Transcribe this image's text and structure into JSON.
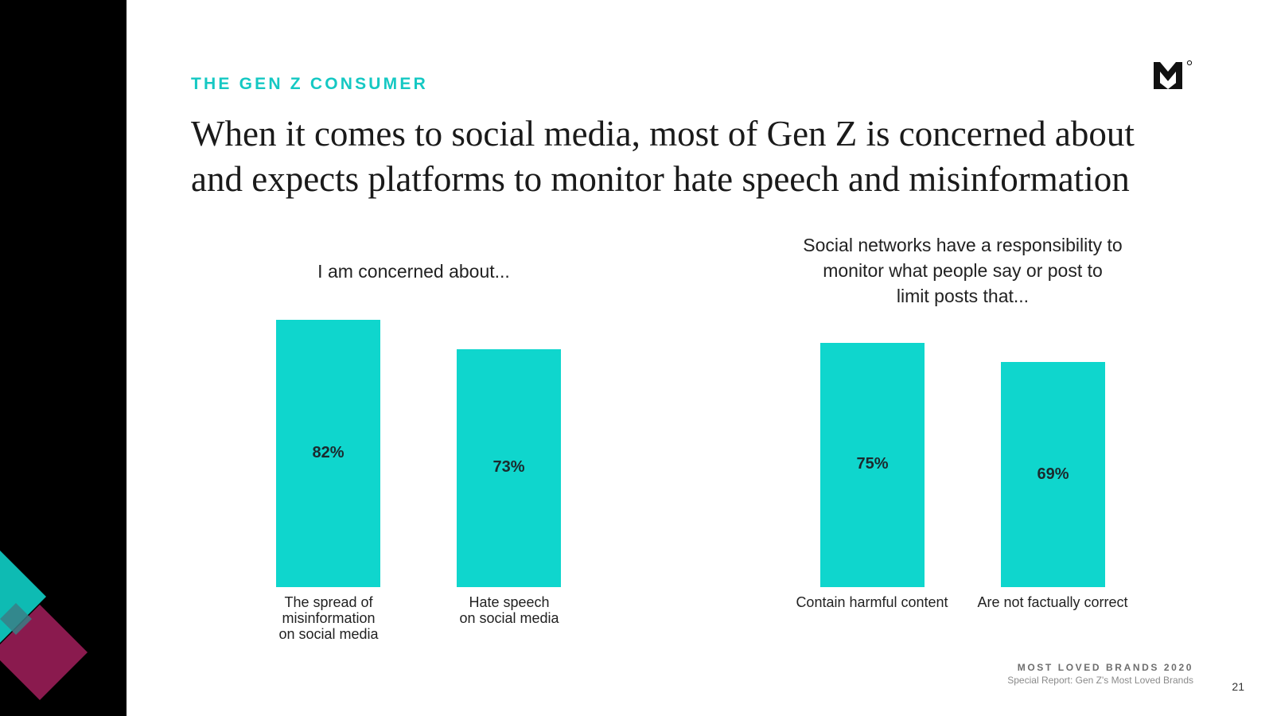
{
  "header": {
    "eyebrow": "THE GEN Z CONSUMER",
    "headline": "When it comes to social media, most of Gen Z is concerned about and expects platforms to monitor hate speech and misinformation"
  },
  "brand": {
    "logo_icon": "brand-m-logo-icon"
  },
  "colors": {
    "accent": "#15c8c3",
    "bar": "#0fd6cd",
    "deco_purple": "#8a1a4e",
    "deco_teal": "#12d0c8",
    "sidebar": "#000000"
  },
  "chart_data": [
    {
      "type": "bar",
      "title": "I am concerned about...",
      "categories": [
        "The spread of misinformation on social media",
        "Hate speech on social media"
      ],
      "category_lines": [
        [
          "The spread of",
          "misinformation",
          "on social media"
        ],
        [
          "Hate speech",
          "on social media"
        ]
      ],
      "values": [
        82,
        73
      ],
      "labels": [
        "82%",
        "73%"
      ],
      "ylim": [
        0,
        100
      ]
    },
    {
      "type": "bar",
      "title": "Social networks have a responsibility to monitor what people say or post to limit posts that...",
      "title_lines": [
        "Social networks have a responsibility to",
        "monitor what people say or post to",
        "limit posts that..."
      ],
      "categories": [
        "Contain harmful content",
        "Are not factually correct"
      ],
      "category_lines": [
        [
          "Contain harmful content"
        ],
        [
          "Are not factually correct"
        ]
      ],
      "values": [
        75,
        69
      ],
      "labels": [
        "75%",
        "69%"
      ],
      "ylim": [
        0,
        100
      ]
    }
  ],
  "footer": {
    "title": "MOST LOVED BRANDS 2020",
    "subtitle": "Special Report: Gen Z's Most Loved Brands",
    "page_number": "21"
  }
}
